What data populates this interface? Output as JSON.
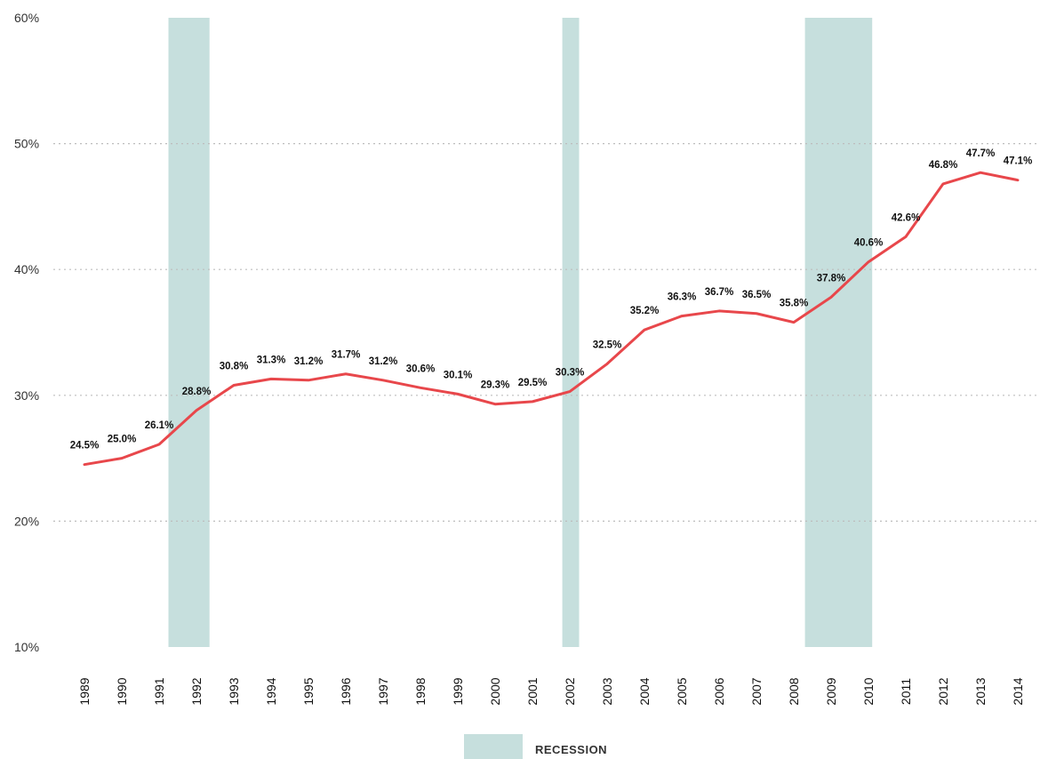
{
  "chart_data": {
    "type": "line",
    "title": "",
    "xlabel": "",
    "ylabel": "",
    "ylim": [
      10,
      60
    ],
    "y_ticks": [
      "10%",
      "20%",
      "30%",
      "40%",
      "50%",
      "60%"
    ],
    "y_tick_values": [
      10,
      20,
      30,
      40,
      50,
      60
    ],
    "grid": "horizontal dotted",
    "categories": [
      "1989",
      "1990",
      "1991",
      "1992",
      "1993",
      "1994",
      "1995",
      "1996",
      "1997",
      "1998",
      "1999",
      "2000",
      "2001",
      "2002",
      "2003",
      "2004",
      "2005",
      "2006",
      "2007",
      "2008",
      "2009",
      "2010",
      "2011",
      "2012",
      "2013",
      "2014"
    ],
    "series": [
      {
        "values": [
          24.5,
          25.0,
          26.1,
          28.8,
          30.8,
          31.3,
          31.2,
          31.7,
          31.2,
          30.6,
          30.1,
          29.3,
          29.5,
          30.3,
          32.5,
          35.2,
          36.3,
          36.7,
          36.5,
          35.8,
          37.8,
          40.6,
          42.6,
          46.8,
          47.7,
          47.1
        ],
        "labels": [
          "24.5%",
          "25.0%",
          "26.1%",
          "28.8%",
          "30.8%",
          "31.3%",
          "31.2%",
          "31.7%",
          "31.2%",
          "30.6%",
          "30.1%",
          "29.3%",
          "29.5%",
          "30.3%",
          "32.5%",
          "35.2%",
          "36.3%",
          "36.7%",
          "36.5%",
          "35.8%",
          "37.8%",
          "40.6%",
          "42.6%",
          "46.8%",
          "47.7%",
          "47.1%"
        ],
        "color": "#e8474b"
      }
    ],
    "recessions": [
      {
        "start": 1991.25,
        "end": 1992.35
      },
      {
        "start": 2001.8,
        "end": 2002.25
      },
      {
        "start": 2008.3,
        "end": 2010.1
      }
    ],
    "recession_color": "#c6dfdd",
    "legend": {
      "label": "RECESSION",
      "placement": "bottom-center"
    }
  }
}
